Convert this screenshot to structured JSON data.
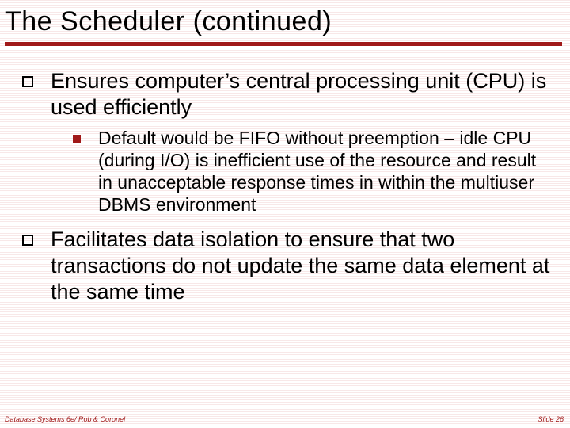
{
  "title": "The Scheduler (continued)",
  "colors": {
    "accent": "#a01818",
    "text": "#000000",
    "background": "#ffffff",
    "stripe": "#f8e8e8"
  },
  "typography": {
    "title_fontsize_pt": 26,
    "lvl1_fontsize_pt": 20,
    "lvl2_fontsize_pt": 17,
    "footer_fontsize_pt": 7,
    "font_family": "Verdana"
  },
  "bullets": {
    "lvl1": [
      {
        "text": "Ensures computer’s central processing unit (CPU) is used efficiently",
        "children": [
          "Default would be FIFO without preemption – idle CPU (during I/O) is inefficient use of the resource and result in unacceptable response times in within the multiuser DBMS environment"
        ]
      },
      {
        "text": "Facilitates data isolation to ensure that two transactions do not update the same data element at the same time",
        "children": []
      }
    ]
  },
  "footer": {
    "left": "Database Systems 6e/ Rob & Coronel",
    "right": "Slide 26"
  }
}
